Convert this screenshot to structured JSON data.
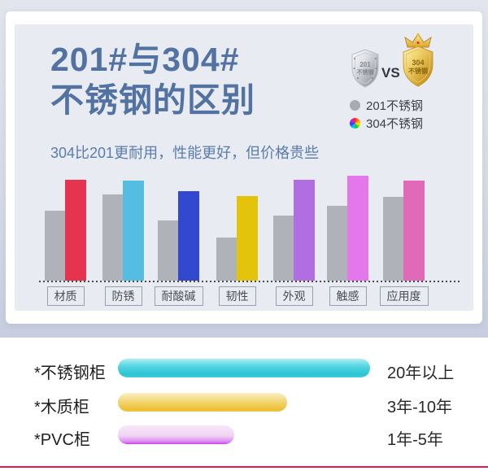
{
  "header": {
    "title_line1": "201#与304#",
    "title_line2": "不锈钢的区别",
    "subtitle": "304比201更耐用，性能更好，但价格贵些",
    "vs_label": "VS",
    "badges": {
      "left": {
        "line1": "201",
        "line2": "不锈钢"
      },
      "right": {
        "line1": "304",
        "line2": "不锈钢"
      }
    }
  },
  "legend": {
    "items": [
      {
        "label": "201不锈钢",
        "swatch": "gray-dot",
        "color": "#a9abb2"
      },
      {
        "label": "304不锈钢",
        "swatch": "color-wheel"
      }
    ]
  },
  "chart_data": [
    {
      "type": "bar",
      "title": "201#与304# 不锈钢的区别",
      "subtitle": "304比201更耐用，性能更好，但价格贵些",
      "categories": [
        "材质",
        "防锈",
        "耐酸碱",
        "韧性",
        "外观",
        "触感",
        "应用度"
      ],
      "series": [
        {
          "name": "201不锈钢",
          "color": "#b0b2b9",
          "values": [
            67,
            82,
            57,
            41,
            62,
            71,
            80
          ]
        },
        {
          "name": "304不锈钢",
          "colors": [
            "#e63450",
            "#56bde2",
            "#3148cf",
            "#e4c30b",
            "#b16ee3",
            "#e577ec",
            "#e06ab8"
          ],
          "values": [
            96,
            95,
            85,
            81,
            96,
            100,
            95
          ]
        }
      ],
      "ylim": [
        0,
        100
      ],
      "grid": false,
      "legend_position": "top-right"
    },
    {
      "type": "bar",
      "orientation": "horizontal",
      "categories": [
        "*不锈钢柜",
        "*木质柜",
        "*PVC柜"
      ],
      "values": [
        100,
        67,
        46
      ],
      "value_labels": [
        "20年以上",
        "3年-10年",
        "1年-5年"
      ],
      "colors": [
        "#3ecfdd",
        "#eec341",
        "#d65fee"
      ]
    }
  ],
  "colors": {
    "title_text": "#5273a1",
    "panel_bg": "#e8ebf2",
    "outer_bg": "#c6cedf",
    "gray_series": "#b0b2b9",
    "bottom_divider": "#e8174e"
  }
}
